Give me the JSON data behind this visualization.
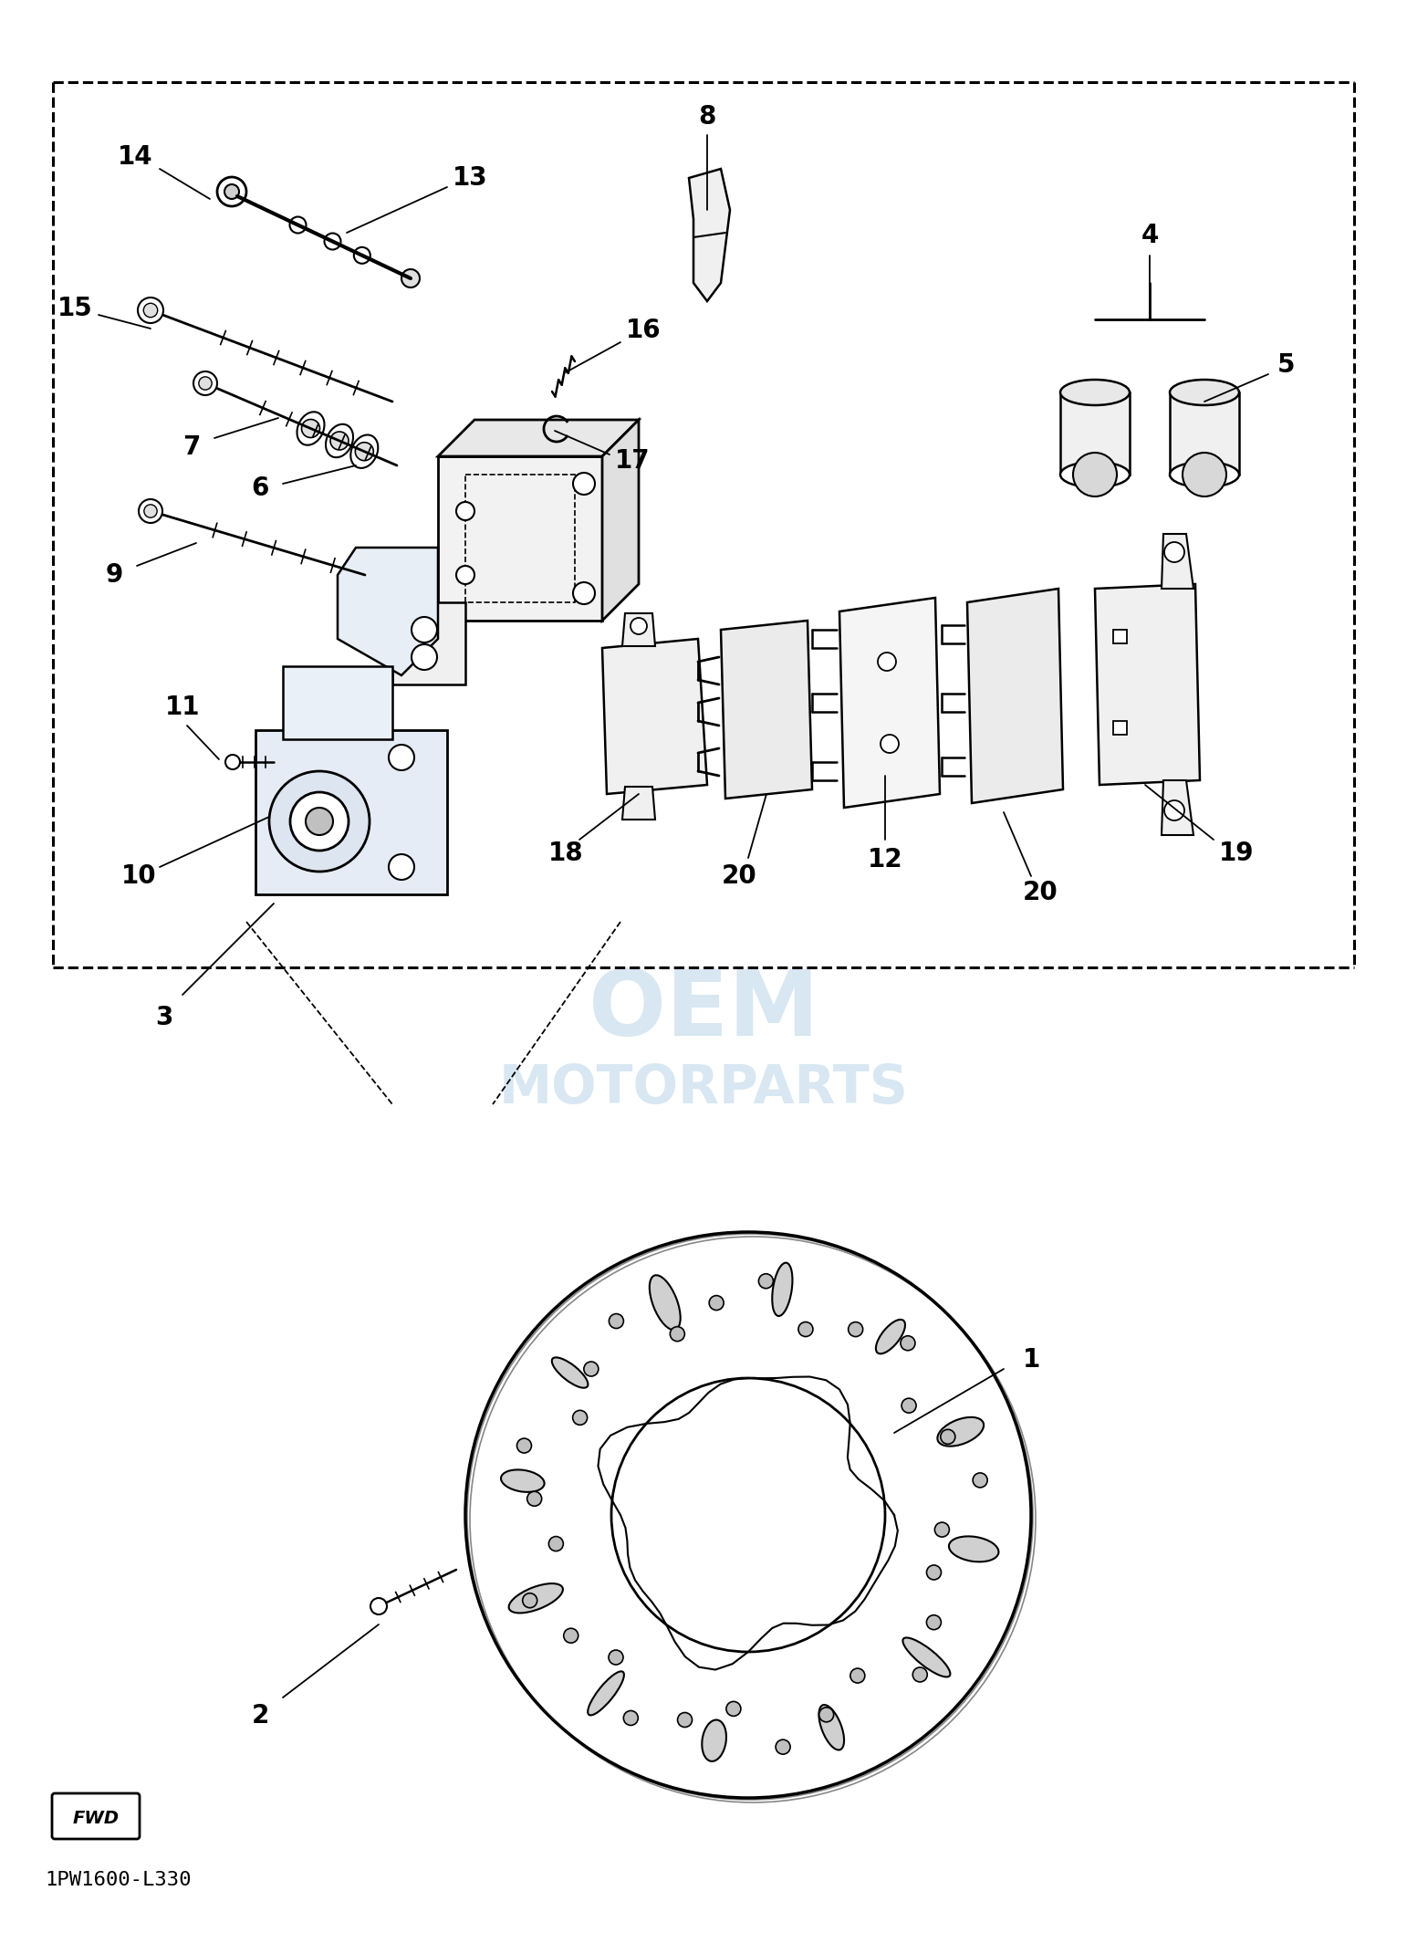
{
  "bg_color": "#ffffff",
  "line_color": "#000000",
  "part_number": "1PW1600-L330",
  "watermark_lines": [
    "OEM",
    "MOTORPARTS"
  ],
  "watermark_color": "#b8d4e8",
  "fig_width": 15.42,
  "fig_height": 21.29,
  "dpi": 100
}
